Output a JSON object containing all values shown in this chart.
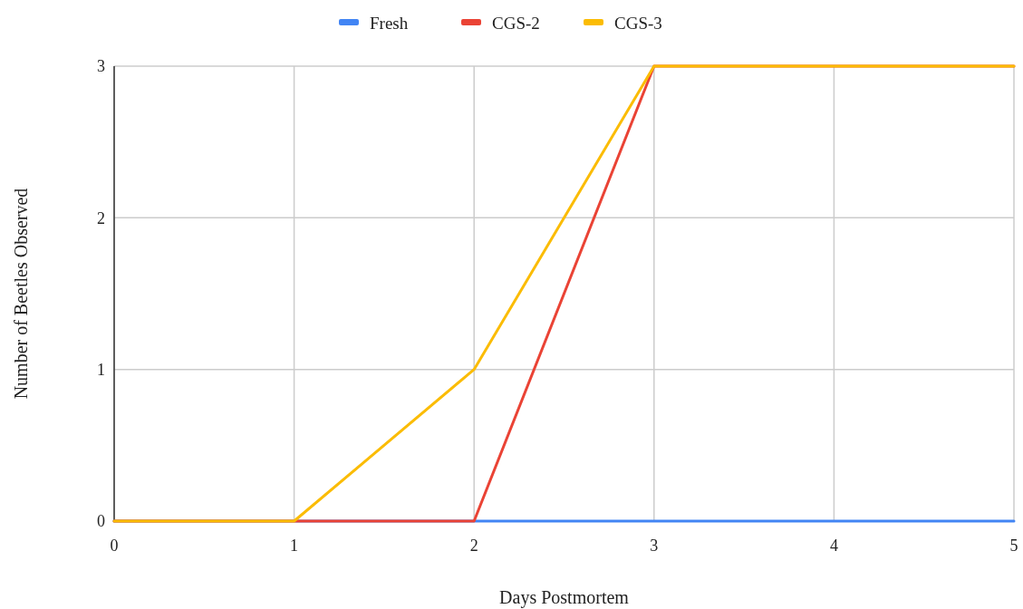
{
  "chart_data": {
    "type": "line",
    "xlabel": "Days Postmortem",
    "ylabel": "Number of Beetles Observed",
    "x": [
      0,
      1,
      2,
      3,
      4,
      5
    ],
    "series": [
      {
        "name": "Fresh",
        "color": "#4285f4",
        "values": [
          0,
          0,
          0,
          0,
          0,
          0
        ]
      },
      {
        "name": "CGS-2",
        "color": "#ea4335",
        "values": [
          0,
          0,
          0,
          3,
          3,
          3
        ]
      },
      {
        "name": "CGS-3",
        "color": "#fbbc04",
        "values": [
          0,
          0,
          1,
          3,
          3,
          3
        ]
      }
    ],
    "xlim": [
      0,
      5
    ],
    "xticks": [
      0,
      1,
      2,
      3,
      4,
      5
    ],
    "ylim": [
      0,
      3
    ],
    "yticks": [
      0,
      1,
      2,
      3
    ],
    "grid": true,
    "legend": "top",
    "marker": "none",
    "line_style": "solid"
  }
}
